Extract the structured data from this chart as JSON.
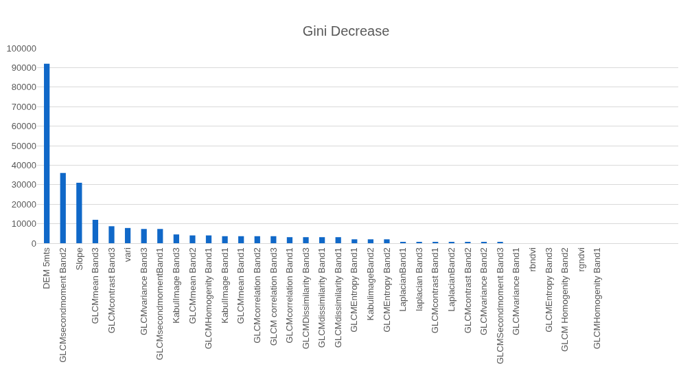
{
  "chart_data": {
    "type": "bar",
    "title": "Gini Decrease",
    "categories": [
      "DEM 5mts",
      "GLCMsecondmoment Band2",
      "Slope",
      "GLCMmean Band3",
      "GLCMcontrast Band3",
      "vari",
      "GLCMvariance Band3",
      "GLCMsecondmomentBand1",
      "KabulImage Band3",
      "GLCMmean Band2",
      "GLCMHomogenity Band1",
      "KabulImage Band1",
      "GLCMmean Band1",
      "GLCMcorrelation Band2",
      "GLCM correlation Band3",
      "GLCMcorrelation Band1",
      "GLCMDissimilarity Band3",
      "GLCMdissimilarity Band1",
      "GLCMdissimilarity Band1",
      "GLCMEntropy Band1",
      "KabulimageBand2",
      "GLCMEntropy Band2",
      "LaplacianBand1",
      "laplacian Band3",
      "GLCMcontrast Band1",
      "LaplacianBand2",
      "GLCMcontrast Band2",
      "GLCMvariance Band2",
      "GLCMSecondmoment Band3",
      "GLCMvariance Band1",
      "rbndvi",
      "GLCMEntropy Band3",
      "GLCM Homogenity Band2",
      "rgndvi",
      "GLCMHomogenity Band1"
    ],
    "values": [
      92000,
      36000,
      31000,
      12000,
      8700,
      7800,
      7300,
      7300,
      4500,
      4000,
      4000,
      3600,
      3600,
      3600,
      3600,
      3100,
      3100,
      3100,
      3100,
      2000,
      2000,
      2000,
      700,
      700,
      700,
      700,
      700,
      700,
      700,
      0,
      0,
      0,
      0,
      0,
      0
    ],
    "color": "#1068c8",
    "ylim": [
      0,
      100000
    ],
    "yticks": [
      0,
      10000,
      20000,
      30000,
      40000,
      50000,
      60000,
      70000,
      80000,
      90000,
      100000
    ],
    "grid": "y"
  }
}
